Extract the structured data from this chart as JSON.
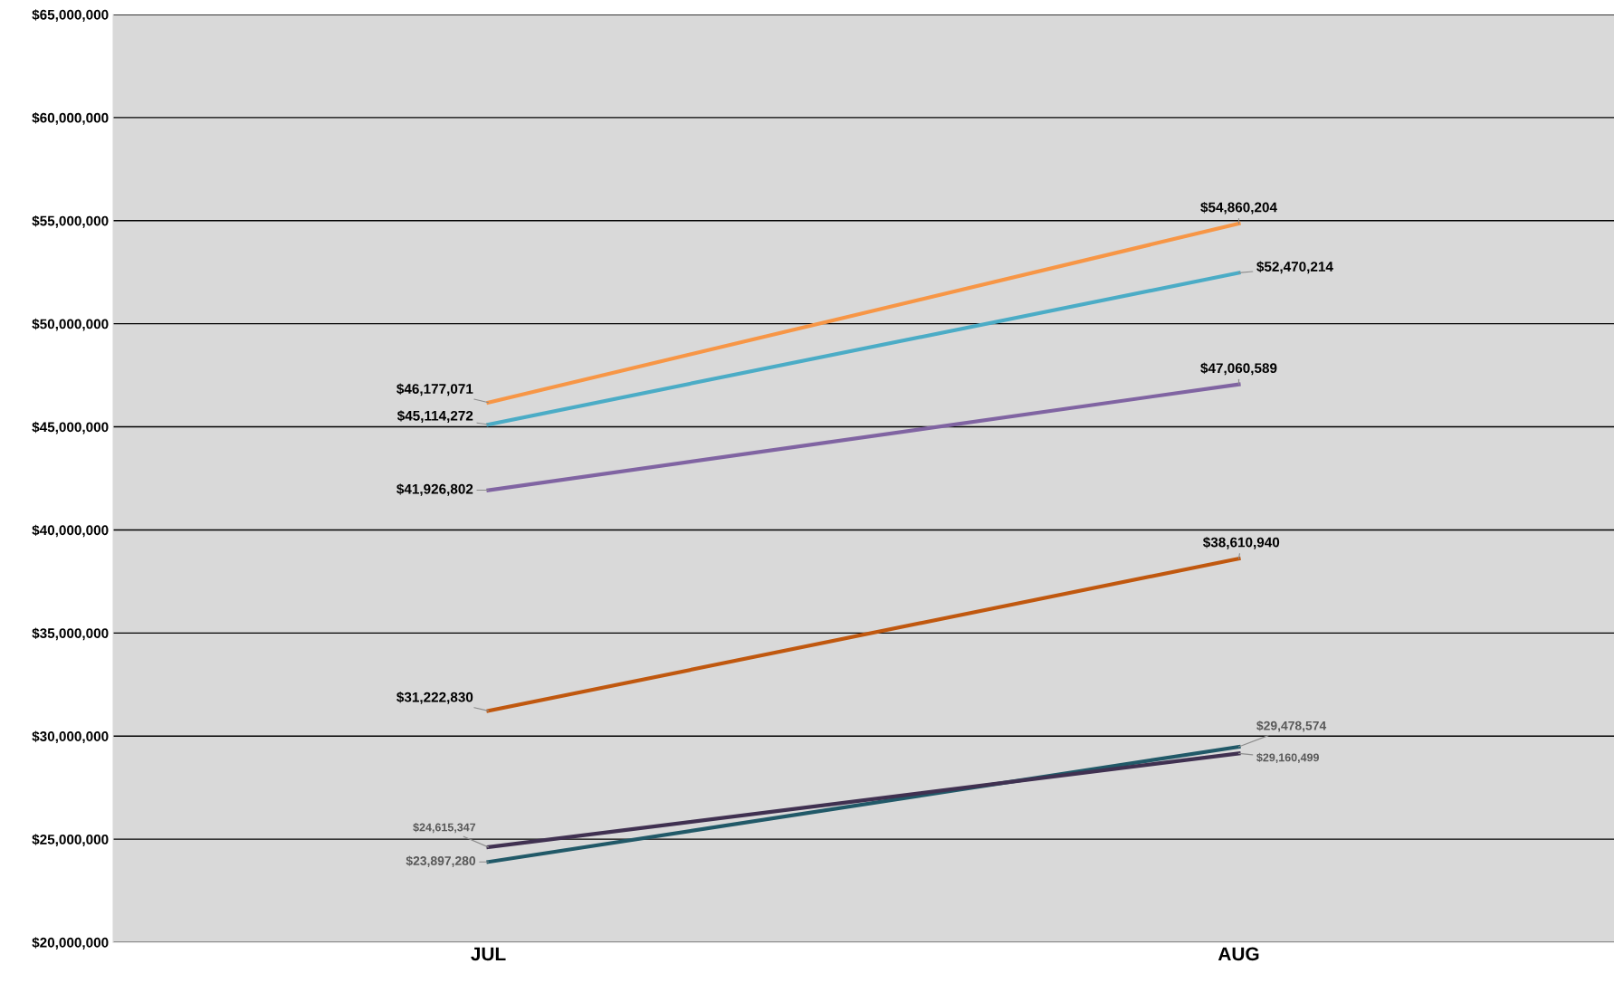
{
  "chart_data": {
    "type": "line",
    "categories": [
      "JUL",
      "AUG"
    ],
    "series": [
      {
        "color": "#f79646",
        "values": [
          46177071,
          54860204
        ],
        "value_labels": [
          "$46,177,071",
          "$54,860,204"
        ]
      },
      {
        "color": "#4bacc6",
        "values": [
          45114272,
          52470214
        ],
        "value_labels": [
          "$45,114,272",
          "$52,470,214"
        ]
      },
      {
        "color": "#8064a2",
        "values": [
          41926802,
          47060589
        ],
        "value_labels": [
          "$41,926,802",
          "$47,060,589"
        ]
      },
      {
        "color": "#c0580f",
        "values": [
          31222830,
          38610940
        ],
        "value_labels": [
          "$31,222,830",
          "$38,610,940"
        ]
      },
      {
        "color": "#215968",
        "values": [
          23897280,
          29478574
        ],
        "value_labels": [
          "$23,897,280",
          "$29,478,574"
        ]
      },
      {
        "color": "#403151",
        "values": [
          24615347,
          29160499
        ],
        "value_labels": [
          "$24,615,347",
          "$29,160,499"
        ]
      }
    ],
    "ylim": [
      20000000,
      65000000
    ],
    "yticks": [
      {
        "value": 20000000,
        "label": "$20,000,000"
      },
      {
        "value": 25000000,
        "label": "$25,000,000"
      },
      {
        "value": 30000000,
        "label": "$30,000,000"
      },
      {
        "value": 35000000,
        "label": "$35,000,000"
      },
      {
        "value": 40000000,
        "label": "$40,000,000"
      },
      {
        "value": 45000000,
        "label": "$45,000,000"
      },
      {
        "value": 50000000,
        "label": "$50,000,000"
      },
      {
        "value": 55000000,
        "label": "$55,000,000"
      },
      {
        "value": 60000000,
        "label": "$60,000,000"
      },
      {
        "value": 65000000,
        "label": "$65,000,000"
      }
    ],
    "grid": "y",
    "marker": "none",
    "line_style": "solid"
  }
}
